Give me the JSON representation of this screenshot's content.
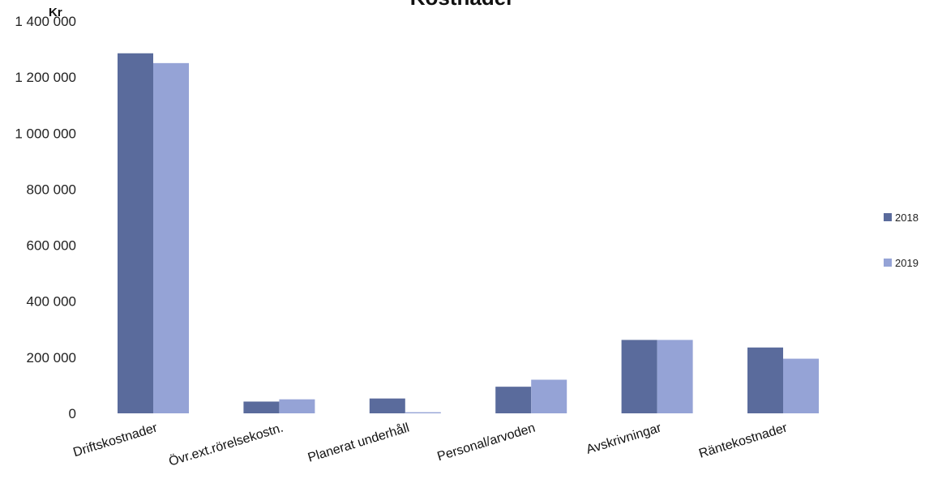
{
  "chart_data": {
    "type": "bar",
    "title": "Kostnader",
    "ylabel": "Kr",
    "xlabel": "",
    "ylim": [
      0,
      1400000
    ],
    "yticks": [
      0,
      200000,
      400000,
      600000,
      800000,
      1000000,
      1200000,
      1400000
    ],
    "ytick_labels": [
      "0",
      "200 000",
      "400 000",
      "600 000",
      "800 000",
      "1 000 000",
      "1 200 000",
      "1 400 000"
    ],
    "categories": [
      "Driftskostnader",
      "Övr.ext.rörelsekostn.",
      "Planerat underhåll",
      "Personal/arvoden",
      "Avskrivningar",
      "Räntekostnader"
    ],
    "series": [
      {
        "name": "2018",
        "color": "#5a6b9c",
        "values": [
          1285000,
          42000,
          53000,
          95000,
          262000,
          235000
        ]
      },
      {
        "name": "2019",
        "color": "#95a3d6",
        "values": [
          1250000,
          50000,
          4000,
          120000,
          262000,
          195000
        ]
      }
    ],
    "grid": false,
    "legend": "right"
  }
}
